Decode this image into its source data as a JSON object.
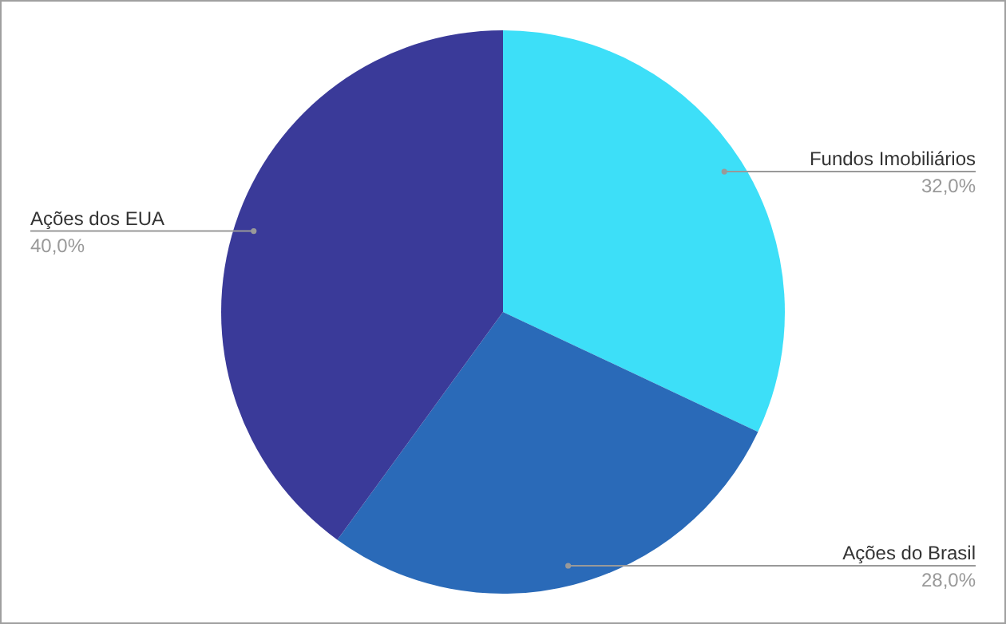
{
  "chart_data": {
    "type": "pie",
    "categories": [
      "Fundos Imobiliários",
      "Ações do Brasil",
      "Ações dos EUA"
    ],
    "values": [
      32,
      28,
      40
    ],
    "colors": [
      "#3ddff8",
      "#2a6ab8",
      "#3a3a99"
    ],
    "value_labels": [
      "32,0%",
      "28,0%",
      "40,0%"
    ],
    "legend": false
  }
}
